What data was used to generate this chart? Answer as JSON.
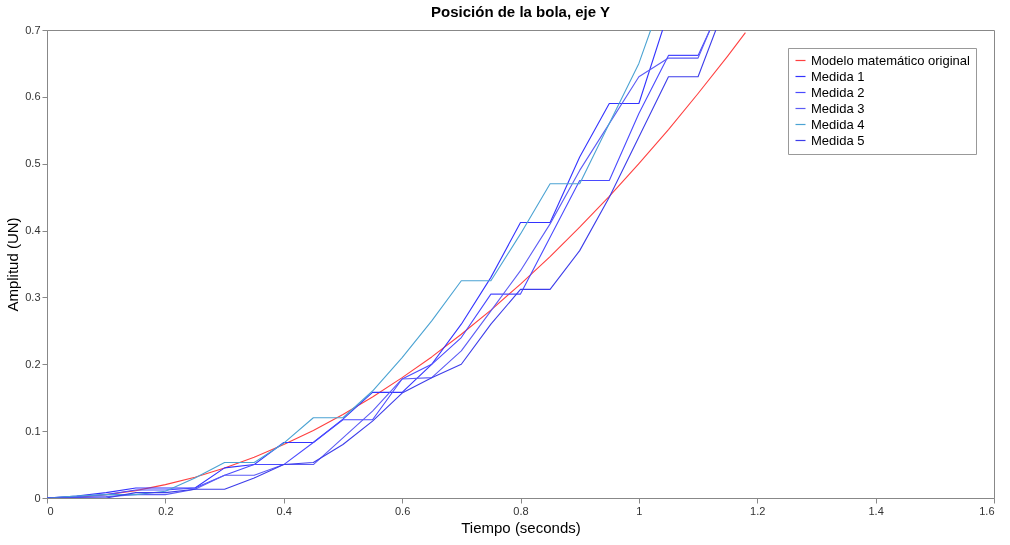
{
  "chart_data": {
    "type": "line",
    "title": "Posición de la bola, eje Y",
    "xlabel": "Tiempo (seconds)",
    "ylabel": "Amplitud (UN)",
    "xlim": [
      0,
      1.6
    ],
    "xticks": [
      0,
      0.2,
      0.4,
      0.6,
      0.8,
      1,
      1.2,
      1.4,
      1.6
    ],
    "ylim": [
      0,
      0.7
    ],
    "yticks": [
      0,
      0.1,
      0.2,
      0.3,
      0.4,
      0.5,
      0.6,
      0.7
    ],
    "grid": false,
    "legend": "top right",
    "marker": "none",
    "line_style": "solid",
    "series": [
      {
        "name": "Modelo matemático original",
        "color": "#ff4040",
        "x": [
          0,
          0.05,
          0.1,
          0.15,
          0.2,
          0.25,
          0.3,
          0.35,
          0.4,
          0.45,
          0.5,
          0.55,
          0.6,
          0.65,
          0.7,
          0.75,
          0.8,
          0.85,
          0.9,
          0.95,
          1,
          1.05,
          1.1,
          1.15,
          1.18
        ],
        "values": [
          0,
          0.001,
          0.005,
          0.011,
          0.02,
          0.031,
          0.045,
          0.061,
          0.08,
          0.101,
          0.125,
          0.151,
          0.18,
          0.211,
          0.245,
          0.281,
          0.32,
          0.361,
          0.405,
          0.451,
          0.5,
          0.551,
          0.605,
          0.661,
          0.696
        ]
      },
      {
        "name": "Medida 1",
        "color": "#3333ff",
        "x": [
          0,
          0.05,
          0.1,
          0.15,
          0.2,
          0.25,
          0.3,
          0.35,
          0.4,
          0.45,
          0.5,
          0.55,
          0.6,
          0.65,
          0.7,
          0.75,
          0.8,
          0.85,
          0.9,
          0.95,
          1,
          1.04
        ],
        "values": [
          0,
          0.003,
          0.008,
          0.015,
          0.015,
          0.015,
          0.045,
          0.05,
          0.083,
          0.083,
          0.118,
          0.158,
          0.158,
          0.2,
          0.26,
          0.33,
          0.412,
          0.412,
          0.51,
          0.59,
          0.59,
          0.7
        ]
      },
      {
        "name": "Medida 2",
        "color": "#4a4aff",
        "x": [
          0,
          0.05,
          0.1,
          0.15,
          0.2,
          0.25,
          0.3,
          0.35,
          0.4,
          0.45,
          0.5,
          0.55,
          0.6,
          0.65,
          0.7,
          0.75,
          0.8,
          0.85,
          0.9,
          0.95,
          1,
          1.05,
          1.1,
          1.12
        ],
        "values": [
          0,
          0.002,
          0.005,
          0.012,
          0.012,
          0.015,
          0.034,
          0.05,
          0.05,
          0.083,
          0.117,
          0.117,
          0.178,
          0.2,
          0.24,
          0.305,
          0.305,
          0.39,
          0.475,
          0.475,
          0.575,
          0.662,
          0.662,
          0.7
        ]
      },
      {
        "name": "Medida 3",
        "color": "#5c5cf5",
        "x": [
          0,
          0.05,
          0.1,
          0.15,
          0.2,
          0.25,
          0.3,
          0.35,
          0.4,
          0.45,
          0.5,
          0.55,
          0.6,
          0.65,
          0.7,
          0.75,
          0.8,
          0.85,
          0.9,
          0.95,
          1,
          1.05,
          1.1,
          1.12
        ],
        "values": [
          0,
          0.001,
          0.002,
          0.005,
          0.005,
          0.013,
          0.034,
          0.034,
          0.05,
          0.05,
          0.09,
          0.13,
          0.178,
          0.18,
          0.22,
          0.28,
          0.34,
          0.41,
          0.49,
          0.56,
          0.63,
          0.658,
          0.658,
          0.7
        ]
      },
      {
        "name": "Medida 4",
        "color": "#4ba3d3",
        "x": [
          0,
          0.05,
          0.1,
          0.15,
          0.2,
          0.25,
          0.3,
          0.35,
          0.4,
          0.45,
          0.5,
          0.55,
          0.6,
          0.65,
          0.7,
          0.75,
          0.8,
          0.85,
          0.9,
          0.95,
          1,
          1.02
        ],
        "values": [
          0,
          0.003,
          0.005,
          0.005,
          0.01,
          0.03,
          0.053,
          0.053,
          0.082,
          0.12,
          0.12,
          0.16,
          0.21,
          0.265,
          0.325,
          0.325,
          0.395,
          0.47,
          0.47,
          0.56,
          0.65,
          0.7
        ]
      },
      {
        "name": "Medida 5",
        "color": "#3d3dea",
        "x": [
          0,
          0.05,
          0.1,
          0.15,
          0.2,
          0.25,
          0.3,
          0.35,
          0.4,
          0.45,
          0.5,
          0.55,
          0.6,
          0.65,
          0.7,
          0.75,
          0.8,
          0.85,
          0.9,
          0.95,
          1,
          1.05,
          1.1,
          1.13
        ],
        "values": [
          0,
          0,
          0,
          0.008,
          0.008,
          0.013,
          0.013,
          0.03,
          0.05,
          0.053,
          0.08,
          0.115,
          0.157,
          0.18,
          0.2,
          0.26,
          0.312,
          0.312,
          0.37,
          0.45,
          0.54,
          0.63,
          0.63,
          0.7
        ]
      }
    ]
  }
}
